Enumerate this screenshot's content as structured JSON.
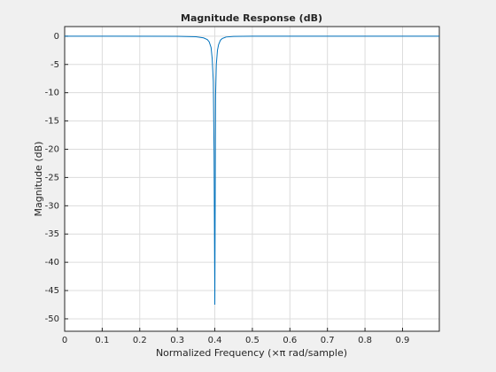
{
  "chart_data": {
    "type": "line",
    "title": "Magnitude Response (dB)",
    "x_label": "Normalized Frequency (×π rad/sample)",
    "y_label": "Magnitude (dB)",
    "x": [
      0,
      0.3,
      0.35,
      0.37,
      0.38,
      0.385,
      0.39,
      0.393,
      0.396,
      0.398,
      0.4,
      0.402,
      0.404,
      0.407,
      0.41,
      0.415,
      0.42,
      0.43,
      0.45,
      0.5,
      0.998
    ],
    "series": [
      {
        "color": "#0072bd",
        "values": [
          0,
          -0.02,
          -0.1,
          -0.3,
          -0.6,
          -1,
          -2,
          -4,
          -8,
          -20.8,
          -47.5,
          -10.5,
          -5,
          -2.5,
          -1.5,
          -0.7,
          -0.4,
          -0.15,
          -0.05,
          0,
          0
        ]
      }
    ],
    "xlim": [
      0,
      0.998
    ],
    "ylim": [
      -52.2,
      1.7
    ],
    "xticks": [
      0,
      0.1,
      0.2,
      0.3,
      0.4,
      0.5,
      0.6,
      0.7,
      0.8,
      0.9
    ],
    "yticks": [
      0,
      -5,
      -10,
      -15,
      -20,
      -25,
      -30,
      -35,
      -40,
      -45,
      -50
    ],
    "grid": true
  }
}
